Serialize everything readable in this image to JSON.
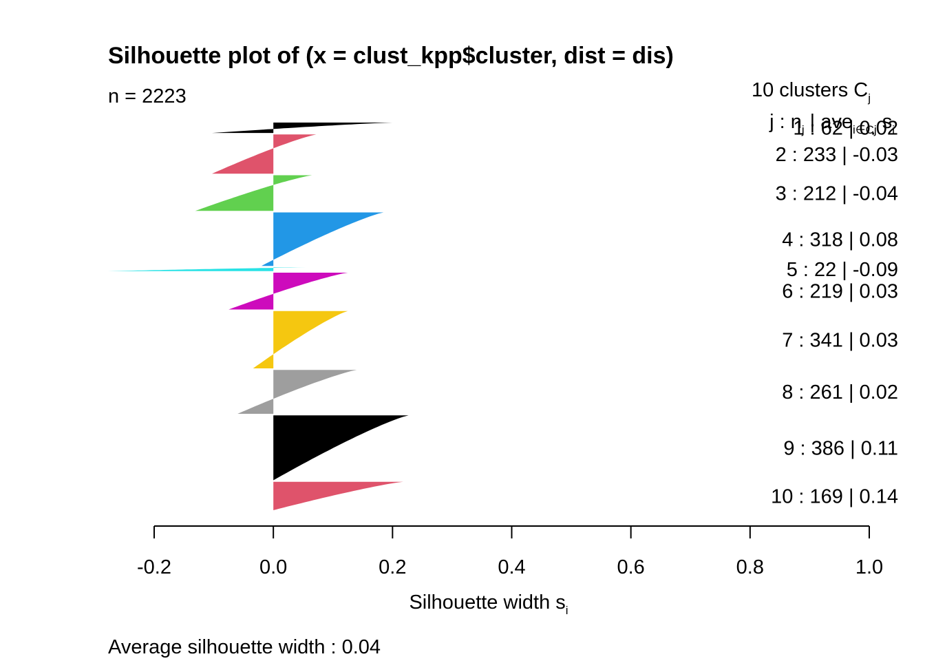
{
  "chart_data": {
    "type": "silhouette",
    "title": "Silhouette plot of (x = clust_kpp$cluster, dist = dis)",
    "n_label": "n = 2223",
    "n": 2223,
    "legend_header": {
      "line1": "10  clusters  C",
      "line1_sub": "j",
      "line2": "j :  n",
      "line2_sub": "j",
      "line2_mid": " | ave",
      "line2_sub2": "i∈Cj",
      "line2_end": " s",
      "line2_sub3": "i"
    },
    "xlabel": "Silhouette width s",
    "xlabel_sub": "i",
    "xlim": [
      -0.2,
      1.0
    ],
    "xticks": [
      -0.2,
      0.0,
      0.2,
      0.4,
      0.6,
      0.8,
      1.0
    ],
    "xtick_labels": [
      "-0.2",
      "0.0",
      "0.2",
      "0.4",
      "0.6",
      "0.8",
      "1.0"
    ],
    "footer": "Average silhouette width :  0.04",
    "average_width": 0.04,
    "clusters": [
      {
        "j": 1,
        "n": 62,
        "ave": "0.02",
        "label": "1 :   62  |  0.02",
        "color": "#000000",
        "max": 0.2,
        "min": -0.103
      },
      {
        "j": 2,
        "n": 233,
        "ave": "-0.03",
        "label": "2 :   233  |  -0.03",
        "color": "#DF536B",
        "max": 0.072,
        "min": -0.103
      },
      {
        "j": 3,
        "n": 212,
        "ave": "-0.04",
        "label": "3 :   212  |  -0.04",
        "color": "#61D04F",
        "max": 0.065,
        "min": -0.131
      },
      {
        "j": 4,
        "n": 318,
        "ave": "0.08",
        "label": "4 :   318  |  0.08",
        "color": "#2297E6",
        "max": 0.185,
        "min": -0.02
      },
      {
        "j": 5,
        "n": 22,
        "ave": "-0.09",
        "label": "5 :   22  |  -0.09",
        "color": "#28E2E5",
        "max": 0.055,
        "min": -0.278
      },
      {
        "j": 6,
        "n": 219,
        "ave": "0.03",
        "label": "6 :   219  |  0.03",
        "color": "#CD0BBC",
        "max": 0.125,
        "min": -0.075
      },
      {
        "j": 7,
        "n": 341,
        "ave": "0.03",
        "label": "7 :   341  |  0.03",
        "color": "#F5C710",
        "max": 0.125,
        "min": -0.034
      },
      {
        "j": 8,
        "n": 261,
        "ave": "0.02",
        "label": "8 :   261  |  0.02",
        "color": "#9E9E9E",
        "max": 0.14,
        "min": -0.06
      },
      {
        "j": 9,
        "n": 386,
        "ave": "0.11",
        "label": "9 :   386  |  0.11",
        "color": "#000000",
        "max": 0.227,
        "min": 0.0
      },
      {
        "j": 10,
        "n": 169,
        "ave": "0.14",
        "label": "10 :   169  |  0.14",
        "color": "#DF536B",
        "max": 0.218,
        "min": 0.0
      }
    ]
  }
}
